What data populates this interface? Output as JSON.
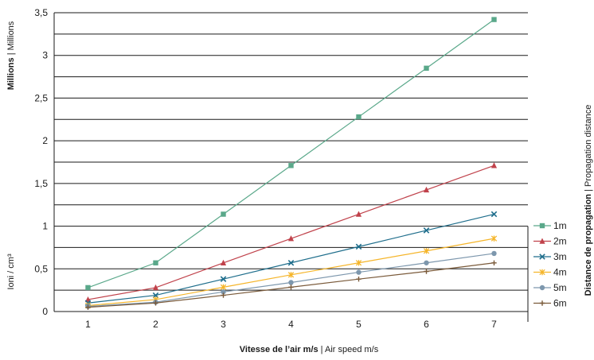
{
  "chart_data": {
    "type": "line",
    "x": [
      1,
      2,
      3,
      4,
      5,
      6,
      7
    ],
    "xlim": [
      0.5,
      7.5
    ],
    "ylim": [
      0,
      3.5
    ],
    "y_ticks": [
      "0",
      "0,5",
      "1",
      "1,5",
      "2",
      "2,5",
      "3",
      "3,5"
    ],
    "x_ticks": [
      "1",
      "2",
      "3",
      "4",
      "5",
      "6",
      "7"
    ],
    "grid": "horizontal",
    "legend_placement": "right",
    "legend_title_bold": "Distance de propagation",
    "legend_title_rest": " | Propagation distance",
    "xlabel_bold": "Vitesse de l’air m/s",
    "xlabel_rest": " | Air speed m/s",
    "ylabel_top_bold": "Millions",
    "ylabel_top_rest": " | Millions",
    "ylabel_bottom": "Ioni / cm³",
    "series": [
      {
        "name": "1m",
        "color": "#5aa88a",
        "marker": "square",
        "values": [
          0.28,
          0.57,
          1.14,
          1.71,
          2.28,
          2.85,
          3.42
        ]
      },
      {
        "name": "2m",
        "color": "#c0424b",
        "marker": "triangle",
        "values": [
          0.14,
          0.28,
          0.57,
          0.855,
          1.14,
          1.425,
          1.71
        ]
      },
      {
        "name": "3m",
        "color": "#1f6e8c",
        "marker": "x",
        "values": [
          0.1,
          0.19,
          0.38,
          0.57,
          0.76,
          0.95,
          1.14
        ]
      },
      {
        "name": "4m",
        "color": "#f5b52a",
        "marker": "star",
        "values": [
          0.07,
          0.14,
          0.285,
          0.43,
          0.57,
          0.71,
          0.855
        ]
      },
      {
        "name": "5m",
        "color": "#7d97ad",
        "marker": "circle",
        "values": [
          0.06,
          0.11,
          0.23,
          0.34,
          0.46,
          0.57,
          0.68
        ]
      },
      {
        "name": "6m",
        "color": "#7a5a3a",
        "marker": "plus",
        "values": [
          0.05,
          0.1,
          0.19,
          0.285,
          0.38,
          0.47,
          0.57
        ]
      }
    ]
  }
}
